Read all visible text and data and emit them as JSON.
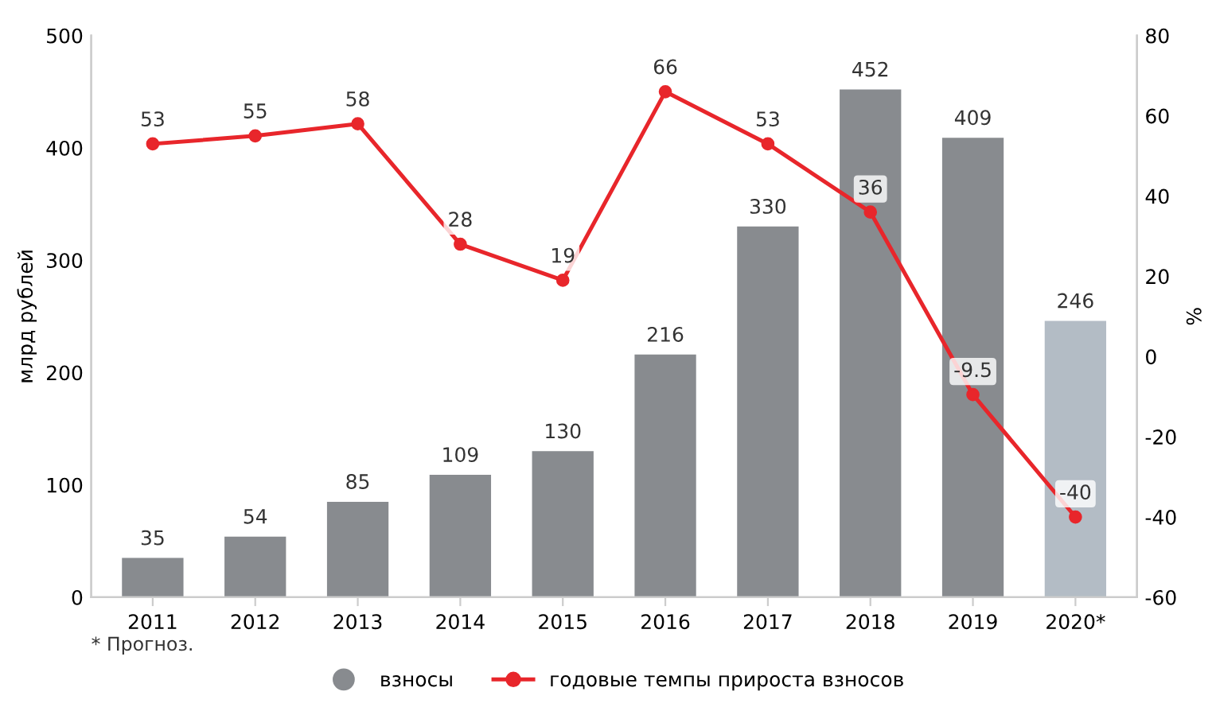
{
  "chart_data": {
    "type": "bar",
    "categories": [
      "2011",
      "2012",
      "2013",
      "2014",
      "2015",
      "2016",
      "2017",
      "2018",
      "2019",
      "2020*"
    ],
    "ylabel": "млрд рублей",
    "y2label": "%",
    "series": [
      {
        "name": "взносы",
        "color": "#888b8f",
        "colors": [
          "#888b8f",
          "#888b8f",
          "#888b8f",
          "#888b8f",
          "#888b8f",
          "#888b8f",
          "#888b8f",
          "#888b8f",
          "#888b8f",
          "#b3bcc5"
        ],
        "values": [
          35,
          54,
          85,
          109,
          130,
          216,
          330,
          452,
          409,
          246
        ]
      },
      {
        "name": "годовые темпы прироста взносов",
        "type": "line",
        "axis": "y2",
        "color": "#e8262b",
        "marker": "circle",
        "values": [
          53,
          55,
          58,
          28,
          19,
          66,
          53,
          36,
          -9.5,
          -40
        ]
      }
    ],
    "ylim": [
      0,
      500
    ],
    "yticks": [
      0,
      100,
      200,
      300,
      400,
      500
    ],
    "y2lim": [
      -60,
      80
    ],
    "y2ticks": [
      -60,
      -40,
      -20,
      0,
      20,
      40,
      60,
      80
    ],
    "data_labels": true,
    "legend": "bottom",
    "grid": false,
    "annotations": [
      "* Прогноз."
    ]
  }
}
